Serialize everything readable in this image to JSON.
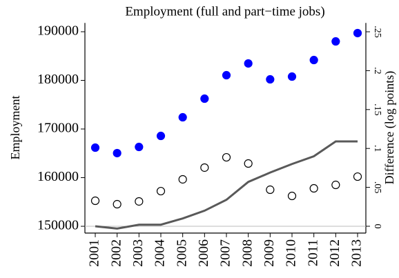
{
  "chart_data": {
    "type": "scatter",
    "title": "Employment (full and part−time jobs)",
    "y_label": "Employment",
    "y2_label": "Difference (log points)",
    "categories": [
      "2001",
      "2002",
      "2003",
      "2004",
      "2005",
      "2006",
      "2007",
      "2008",
      "2009",
      "2010",
      "2011",
      "2012",
      "2013"
    ],
    "series": [
      {
        "color": "#0000ff",
        "marker": "filled",
        "values": [
          166170,
          165040,
          166310,
          168580,
          172410,
          176240,
          181060,
          183480,
          180210,
          180780,
          184180,
          188010,
          189720
        ]
      },
      {
        "color": "#000000",
        "marker": "hollow",
        "values": [
          155250,
          154540,
          155110,
          157230,
          159650,
          162060,
          164180,
          162910,
          157520,
          156240,
          157800,
          158510,
          160210
        ]
      },
      {
        "color": "#595959",
        "marker": "line",
        "axis": "y2",
        "values": [
          0,
          -0.003,
          0.002,
          0.002,
          0.01,
          0.02,
          0.034,
          0.057,
          0.069,
          0.08,
          0.09,
          0.109,
          0.109
        ]
      }
    ],
    "ylim": [
      148600,
      191800
    ],
    "yticks": [
      150000,
      160000,
      170000,
      180000,
      190000
    ],
    "y2lim": [
      -0.0088,
      0.2613
    ],
    "y2ticks": [
      0,
      {
        "value": 0.05,
        "label": ".05"
      },
      {
        "value": 0.1,
        "label": ".1"
      },
      {
        "value": 0.15,
        "label": ".15"
      },
      {
        "value": 0.2,
        "label": ".2"
      },
      {
        "value": 0.25,
        "label": ".25"
      }
    ],
    "y2_zero_line": true,
    "grid": false
  }
}
